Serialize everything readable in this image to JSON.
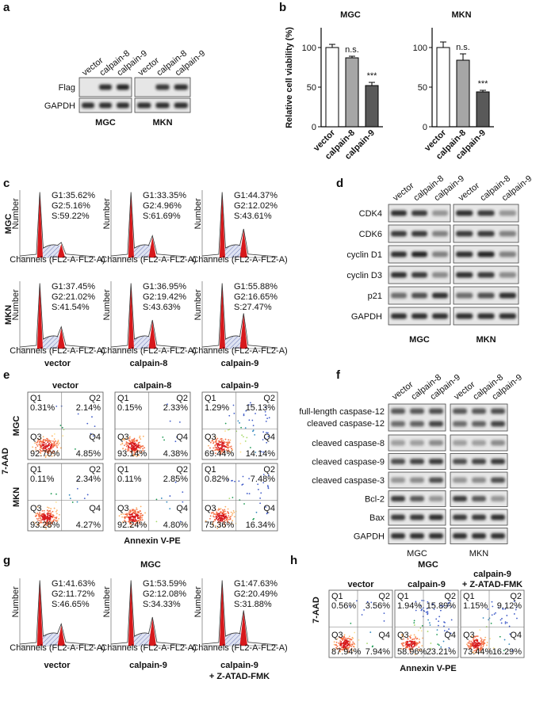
{
  "panel_labels": [
    "a",
    "b",
    "c",
    "d",
    "e",
    "f",
    "g",
    "h"
  ],
  "panel_a": {
    "lanes": [
      "vector",
      "calpain-8",
      "calpain-9"
    ],
    "rows": [
      "Flag",
      "GAPDH"
    ],
    "groups": [
      "MGC",
      "MKN"
    ]
  },
  "panel_b": {
    "y_label": "Relative cell viability (%)",
    "categories": [
      "vector",
      "calpain-8",
      "calpain-9"
    ],
    "ylim": [
      0,
      125
    ],
    "yticks": [
      0,
      50,
      100
    ],
    "colors": [
      "#ffffff",
      "#a6a6a6",
      "#595959"
    ],
    "charts": [
      {
        "title": "MGC",
        "values": [
          100,
          87,
          52
        ],
        "errors": [
          4,
          2,
          4
        ],
        "significance": [
          "n.s.",
          "***"
        ]
      },
      {
        "title": "MKN",
        "values": [
          100,
          84,
          44
        ],
        "errors": [
          7,
          8,
          2
        ],
        "significance": [
          "n.s.",
          "***"
        ]
      }
    ]
  },
  "panel_c": {
    "rows": [
      "MGC",
      "MKN"
    ],
    "columns": [
      "vector",
      "calpain-8",
      "calpain-9"
    ],
    "x_label": "Channels (FL2-A-FL2-A)",
    "y_label": "Number",
    "stats": [
      [
        [
          "G1:35.62%",
          "G2:5.16%",
          "S:59.22%"
        ],
        [
          "G1:33.35%",
          "G2:4.96%",
          "S:61.69%"
        ],
        [
          "G1:44.37%",
          "G2:12.02%",
          "S:43.61%"
        ]
      ],
      [
        [
          "G1:37.45%",
          "G2:21.02%",
          "S:41.54%"
        ],
        [
          "G1:36.95%",
          "G2:19.42%",
          "S:43.63%"
        ],
        [
          "G1:55.88%",
          "G2:16.65%",
          "S:27.47%"
        ]
      ]
    ]
  },
  "panel_d": {
    "lanes": [
      "vector",
      "calpain-8",
      "calpain-9"
    ],
    "rows": [
      "CDK4",
      "CDK6",
      "cyclin D1",
      "cyclin D3",
      "p21",
      "GAPDH"
    ],
    "groups": [
      "MGC",
      "MKN"
    ]
  },
  "panel_e": {
    "rows": [
      "MGC",
      "MKN"
    ],
    "columns": [
      "vector",
      "calpain-8",
      "calpain-9"
    ],
    "y_label": "7-AAD",
    "x_label": "Annexin V-PE",
    "quadrant_names": [
      "Q1",
      "Q2",
      "Q3",
      "Q4"
    ],
    "quadrants": [
      [
        [
          "0.31%",
          "2.14%",
          "92.70%",
          "4.85%"
        ],
        [
          "0.15%",
          "2.33%",
          "93.14%",
          "4.38%"
        ],
        [
          "1.29%",
          "15.13%",
          "69.44%",
          "14.14%"
        ]
      ],
      [
        [
          "0.11%",
          "2.34%",
          "93.28%",
          "4.27%"
        ],
        [
          "0.11%",
          "2.85%",
          "92.24%",
          "4.80%"
        ],
        [
          "0.82%",
          "7.48%",
          "75.36%",
          "16.34%"
        ]
      ]
    ]
  },
  "panel_f": {
    "lanes": [
      "vector",
      "calpain-8",
      "calpain-9"
    ],
    "rows": [
      "full-length caspase-12",
      "cleaved caspase-12",
      "cleaved caspase-8",
      "cleaved caspase-9",
      "cleaved caspase-3",
      "Bcl-2",
      "Bax",
      "GAPDH"
    ],
    "groups": [
      "MGC",
      "MKN"
    ]
  },
  "panel_g": {
    "title": "MGC",
    "columns": [
      [
        "vector"
      ],
      [
        "calpain-9"
      ],
      [
        "calpain-9",
        "+ Z-ATAD-FMK"
      ]
    ],
    "stats": [
      [
        "G1:41.63%",
        "G2:11.72%",
        "S:46.65%"
      ],
      [
        "G1:53.59%",
        "G2:12.08%",
        "S:34.33%"
      ],
      [
        "G1:47.63%",
        "G2:20.49%",
        "S:31.88%"
      ]
    ]
  },
  "panel_h": {
    "title": "MGC",
    "columns": [
      [
        "vector"
      ],
      [
        "calpain-9"
      ],
      [
        "calpain-9",
        "+ Z-ATAD-FMK"
      ]
    ],
    "y_label": "7-AAD",
    "x_label": "Annexin V-PE",
    "quadrant_names": [
      "Q1",
      "Q2",
      "Q3",
      "Q4"
    ],
    "quadrants": [
      [
        "0.56%",
        "3.56%",
        "87.94%",
        "7.94%"
      ],
      [
        "1.94%",
        "15.89%",
        "58.96%",
        "23.21%"
      ],
      [
        "1.15%",
        "9.12%",
        "73.44%",
        "16.29%"
      ]
    ]
  }
}
